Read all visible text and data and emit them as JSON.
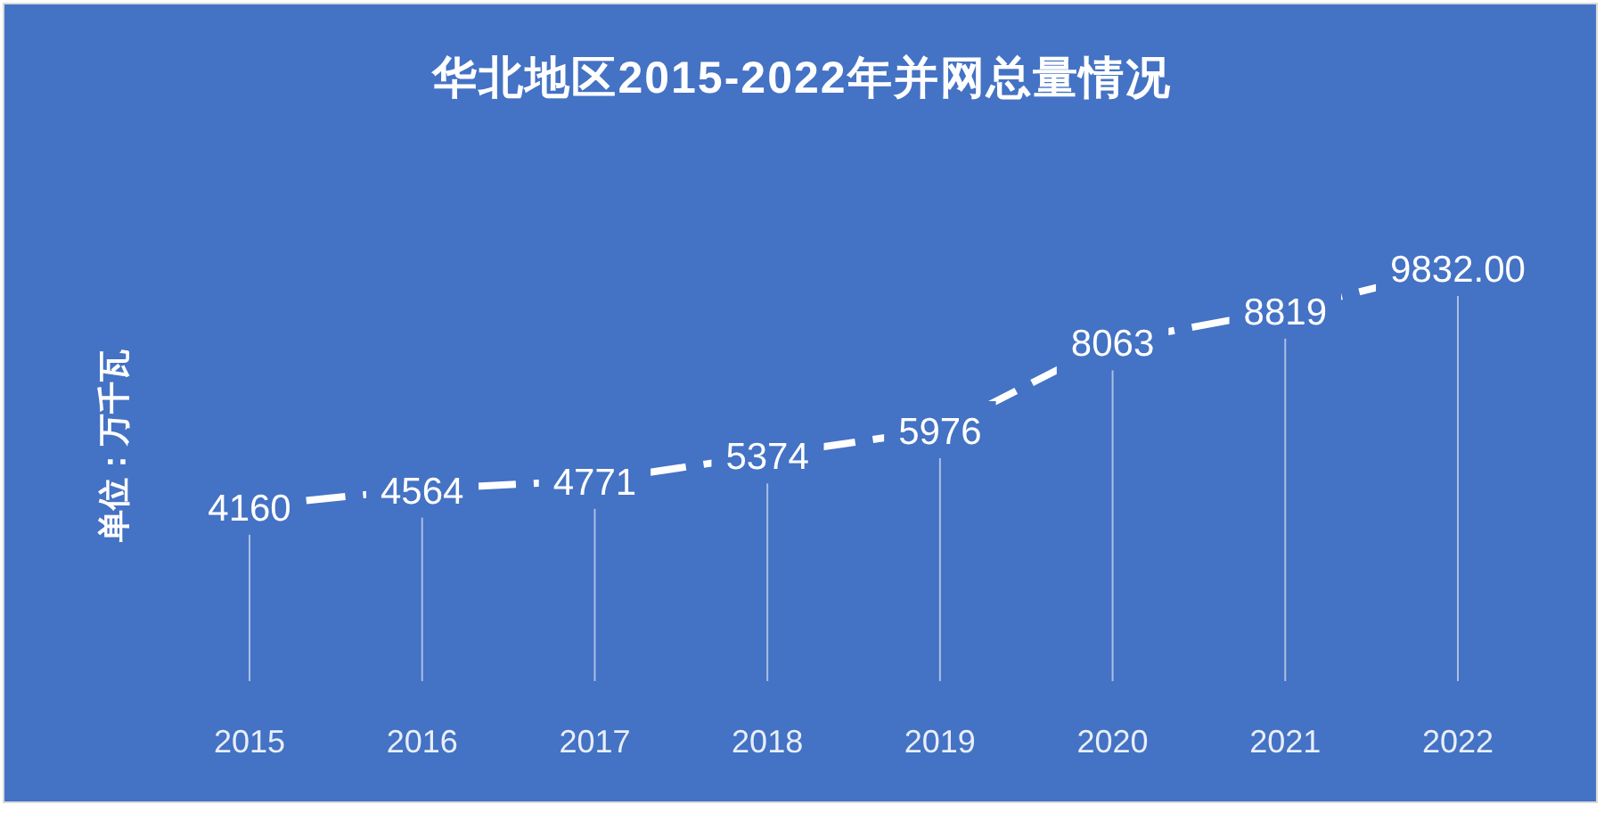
{
  "chart_data": {
    "type": "line",
    "title": "华北地区2015-2022年并网总量情况",
    "ylabel": "单位：万千瓦",
    "categories": [
      "2015",
      "2016",
      "2017",
      "2018",
      "2019",
      "2020",
      "2021",
      "2022"
    ],
    "series": [
      {
        "color": "#ffffff",
        "values": [
          4160,
          4564,
          4771,
          5374,
          5976,
          8063,
          8819,
          9832
        ],
        "value_labels": [
          "4160",
          "4564",
          "4771",
          "5374",
          "5976",
          "8063",
          "8819",
          "9832.00"
        ]
      }
    ],
    "line_style": "dashed",
    "grid": "x"
  }
}
